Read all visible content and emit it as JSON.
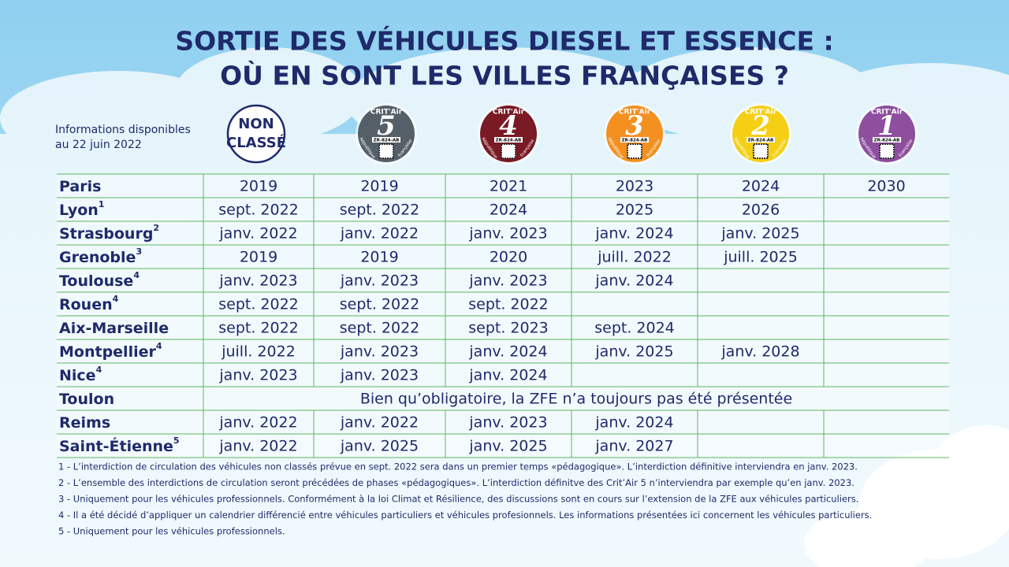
{
  "title": [
    "SORTIE DES VÉHICULES DIESEL ET ESSENCE :",
    "OÙ EN SONT LES VILLES FRANÇAISES ?"
  ],
  "date_note": [
    "Informations disponibles",
    "au 22 juin 2022"
  ],
  "badges": [
    {
      "label": [
        "NON",
        "CLASSÉ"
      ],
      "color": "#ffffff"
    },
    {
      "brand": "CRIT'Air",
      "number": "5",
      "plate": "ZR-824-AB",
      "left": "République",
      "right": "Française",
      "color": "#555f68"
    },
    {
      "brand": "CRIT'Air",
      "number": "4",
      "plate": "ZR-824-AB",
      "left": "République",
      "right": "Française",
      "color": "#7a1a24"
    },
    {
      "brand": "CRIT'Air",
      "number": "3",
      "plate": "ZR-824-AB",
      "left": "République",
      "right": "Française",
      "color": "#f39020"
    },
    {
      "brand": "CRIT'Air",
      "number": "2",
      "plate": "ZR-824-AB",
      "left": "République",
      "right": "Française",
      "color": "#f5cf14"
    },
    {
      "brand": "CRIT'Air",
      "number": "1",
      "plate": "ZR-824-AB",
      "left": "République",
      "right": "Française",
      "color": "#8d4f9e"
    }
  ],
  "rows": [
    {
      "city": "Paris",
      "cells": [
        "2019",
        "2019",
        "2021",
        "2023",
        "2024",
        "2030"
      ]
    },
    {
      "city": "Lyon",
      "note": "1",
      "cells": [
        "sept. 2022",
        "sept. 2022",
        "2024",
        "2025",
        "2026",
        null
      ]
    },
    {
      "city": "Strasbourg",
      "note": "2",
      "cells": [
        "janv. 2022",
        "janv. 2022",
        "janv. 2023",
        "janv. 2024",
        "janv. 2025",
        null
      ]
    },
    {
      "city": "Grenoble",
      "note": "3",
      "cells": [
        "2019",
        "2019",
        "2020",
        "juill. 2022",
        "juill. 2025",
        null
      ]
    },
    {
      "city": "Toulouse",
      "note": "4",
      "cells": [
        "janv. 2023",
        "janv. 2023",
        "janv. 2023",
        "janv. 2024",
        null,
        null
      ]
    },
    {
      "city": "Rouen",
      "note": "4",
      "cells": [
        "sept. 2022",
        "sept. 2022",
        "sept. 2022",
        null,
        null,
        null
      ]
    },
    {
      "city": "Aix-Marseille",
      "cells": [
        "sept. 2022",
        "sept. 2022",
        "sept. 2023",
        "sept. 2024",
        null,
        null
      ]
    },
    {
      "city": "Montpellier",
      "note": "4",
      "cells": [
        "juill. 2022",
        "janv. 2023",
        "janv. 2024",
        "janv. 2025",
        "janv. 2028",
        null
      ]
    },
    {
      "city": "Nice",
      "note": "4",
      "cells": [
        "janv. 2023",
        "janv. 2023",
        "janv. 2024",
        null,
        null,
        null
      ]
    },
    {
      "city": "Toulon",
      "span_text": "Bien qu’obligatoire, la ZFE n’a toujours pas été présentée"
    },
    {
      "city": "Reims",
      "cells": [
        "janv. 2022",
        "janv. 2022",
        "janv. 2023",
        "janv. 2024",
        null,
        null
      ]
    },
    {
      "city": "Saint-Étienne",
      "note": "5",
      "cells": [
        "janv. 2022",
        "janv. 2025",
        "janv. 2025",
        "janv. 2027",
        null,
        null
      ]
    }
  ],
  "footnotes": [
    "1 - L’interdiction de circulation des véhicules non classés prévue en sept. 2022 sera dans un premier temps «pédagogique». L’interdiction définitive interviendra en janv. 2023.",
    "2 - L’ensemble des interdictions de circulation seront précédées de phases «pédagogiques». L’interdiction définitve des Crit’Air 5 n’interviendra par exemple qu’en janv. 2023.",
    "3 - Uniquement pour les véhicules professionnels. Conformément à la loi Climat et Résilience, des discussions sont en cours sur l’extension de la ZFE aux véhicules particuliers.",
    "4 - Il a été décidé d’appliquer un calendrier différencié entre véhicules particuliers et véhicules profesionnels. Les informations présentées ici concernent les véhicules particuliers.",
    "5 - Uniquement pour les véhicules professionnels."
  ]
}
